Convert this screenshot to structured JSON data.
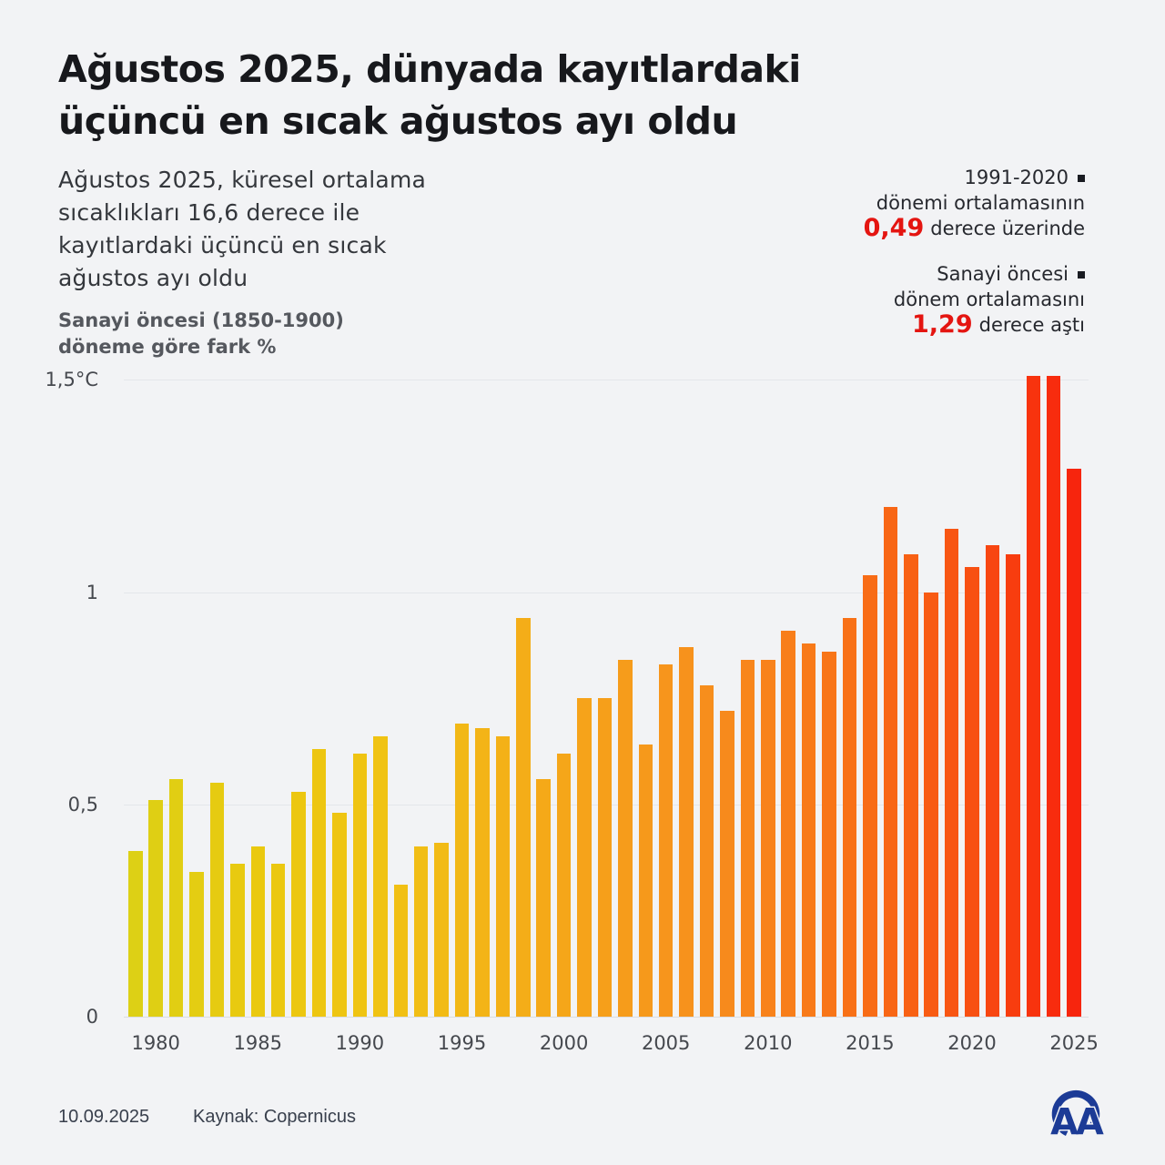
{
  "title": {
    "line1": "Ağustos 2025, dünyada kayıtlardaki",
    "line2": "üçüncü en sıcak ağustos ayı oldu"
  },
  "subtitle": {
    "line1": "Ağustos 2025, küresel ortalama",
    "line2": "sıcaklıkları 16,6 derece ile",
    "line3": "kayıtlardaki üçüncü en sıcak",
    "line4": "ağustos ayı oldu"
  },
  "axis_note": {
    "line1": "Sanayi öncesi (1850-1900)",
    "line2": "döneme göre fark %"
  },
  "annotations": [
    {
      "heading": "1991-2020",
      "line2": "dönemi ortalamasının",
      "value": "0,49",
      "value_suffix": "derece üzerinde"
    },
    {
      "heading": "Sanayi öncesi",
      "line2": "dönem ortalamasını",
      "value": "1,29",
      "value_suffix": "derece aştı"
    }
  ],
  "footer": {
    "date": "10.09.2025",
    "source": "Kaynak: Copernicus",
    "logo_text": "AA"
  },
  "colors": {
    "background": "#f2f3f5",
    "accent_red": "#e41511",
    "logo_blue": "#1c3b96",
    "grid": "#e4e6ea",
    "grid_baseline": "#dbdde1",
    "text_dark": "#17181c",
    "text_medium": "#34373c",
    "text_gray": "#55585e",
    "tick_text": "#45484e"
  },
  "chart_data": {
    "type": "bar",
    "title": "Sanayi öncesi (1850-1900) döneme göre fark %",
    "unit": "°C",
    "grid": true,
    "legend": false,
    "ylim": [
      0,
      1.5
    ],
    "years": [
      1979,
      1980,
      1981,
      1982,
      1983,
      1984,
      1985,
      1986,
      1987,
      1988,
      1989,
      1990,
      1991,
      1992,
      1993,
      1994,
      1995,
      1996,
      1997,
      1998,
      1999,
      2000,
      2001,
      2002,
      2003,
      2004,
      2005,
      2006,
      2007,
      2008,
      2009,
      2010,
      2011,
      2012,
      2013,
      2014,
      2015,
      2016,
      2017,
      2018,
      2019,
      2020,
      2021,
      2022,
      2023,
      2024,
      2025
    ],
    "values": [
      0.39,
      0.51,
      0.56,
      0.34,
      0.55,
      0.36,
      0.4,
      0.36,
      0.53,
      0.63,
      0.48,
      0.62,
      0.66,
      0.31,
      0.4,
      0.41,
      0.69,
      0.68,
      0.66,
      0.94,
      0.56,
      0.62,
      0.75,
      0.75,
      0.84,
      0.64,
      0.83,
      0.87,
      0.78,
      0.72,
      0.84,
      0.84,
      0.91,
      0.88,
      0.86,
      0.94,
      1.04,
      1.2,
      1.09,
      1.0,
      1.15,
      1.06,
      1.11,
      1.09,
      1.51,
      1.51,
      1.29
    ],
    "y_ticks": [
      {
        "value": 1.5,
        "label": "1,5°C"
      },
      {
        "value": 1.0,
        "label": "1"
      },
      {
        "value": 0.5,
        "label": "0,5"
      },
      {
        "value": 0.0,
        "label": "0"
      }
    ],
    "x_tick_years": [
      1980,
      1985,
      1990,
      1995,
      2000,
      2005,
      2010,
      2015,
      2020,
      2025
    ],
    "bar_color_stops": [
      {
        "index": 0,
        "color": "#ddd015"
      },
      {
        "index": 6,
        "color": "#eac90f"
      },
      {
        "index": 12,
        "color": "#f0c313"
      },
      {
        "index": 16,
        "color": "#f2b816"
      },
      {
        "index": 20,
        "color": "#f5a918"
      },
      {
        "index": 24,
        "color": "#f69c1b"
      },
      {
        "index": 28,
        "color": "#f78e1c"
      },
      {
        "index": 32,
        "color": "#f87e1a"
      },
      {
        "index": 35,
        "color": "#f87117"
      },
      {
        "index": 38,
        "color": "#f86114"
      },
      {
        "index": 41,
        "color": "#f85012"
      },
      {
        "index": 44,
        "color": "#f8330e"
      },
      {
        "index": 46,
        "color": "#f7250d"
      }
    ]
  }
}
